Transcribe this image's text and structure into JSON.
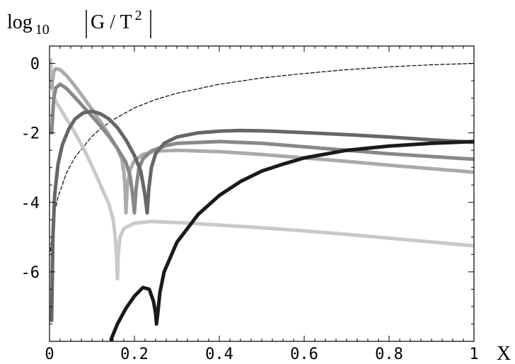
{
  "chart_data": {
    "type": "line",
    "title": "",
    "ylabel": {
      "prefix": "log",
      "subscript": "10",
      "expr_main": "G / T",
      "expr_superscript": "2"
    },
    "xlabel": "X",
    "xlim": [
      0,
      1
    ],
    "ylim": [
      -8,
      0.5
    ],
    "grid": false,
    "legend": "none",
    "x_ticks": [
      {
        "value": 0,
        "label": "0"
      },
      {
        "value": 0.2,
        "label": "0.2"
      },
      {
        "value": 0.4,
        "label": "0.4"
      },
      {
        "value": 0.6,
        "label": "0.6"
      },
      {
        "value": 0.8,
        "label": "0.8"
      },
      {
        "value": 1,
        "label": "1"
      }
    ],
    "y_ticks": [
      {
        "value": 0,
        "label": "0"
      },
      {
        "value": -2,
        "label": "-2"
      },
      {
        "value": -4,
        "label": "-4"
      },
      {
        "value": -6,
        "label": "-6"
      }
    ],
    "series": [
      {
        "color": "#000000",
        "width": 1.2,
        "dash": "5,3",
        "points": [
          [
            0.002,
            -5.4
          ],
          [
            0.01,
            -4.4
          ],
          [
            0.02,
            -3.85
          ],
          [
            0.04,
            -3.15
          ],
          [
            0.06,
            -2.7
          ],
          [
            0.08,
            -2.4
          ],
          [
            0.1,
            -2.1
          ],
          [
            0.12,
            -1.88
          ],
          [
            0.15,
            -1.62
          ],
          [
            0.2,
            -1.28
          ],
          [
            0.25,
            -1.04
          ],
          [
            0.3,
            -0.86
          ],
          [
            0.4,
            -0.6
          ],
          [
            0.5,
            -0.42
          ],
          [
            0.6,
            -0.29
          ],
          [
            0.7,
            -0.18
          ],
          [
            0.8,
            -0.1
          ],
          [
            0.9,
            -0.04
          ],
          [
            1.0,
            0.0
          ]
        ]
      },
      {
        "color": "#c9c9c9",
        "width": 5,
        "points": [
          [
            0.003,
            0.1
          ],
          [
            0.006,
            -0.6
          ],
          [
            0.01,
            -0.9
          ],
          [
            0.015,
            -1.1
          ],
          [
            0.02,
            -1.2
          ],
          [
            0.04,
            -1.6
          ],
          [
            0.06,
            -2.0
          ],
          [
            0.08,
            -2.45
          ],
          [
            0.1,
            -2.95
          ],
          [
            0.12,
            -3.5
          ],
          [
            0.14,
            -4.05
          ],
          [
            0.15,
            -4.5
          ],
          [
            0.155,
            -5.0
          ],
          [
            0.158,
            -5.6
          ],
          [
            0.16,
            -6.2
          ],
          [
            0.162,
            -5.5
          ],
          [
            0.166,
            -5.0
          ],
          [
            0.175,
            -4.75
          ],
          [
            0.2,
            -4.6
          ],
          [
            0.24,
            -4.55
          ],
          [
            0.3,
            -4.58
          ],
          [
            0.4,
            -4.65
          ],
          [
            0.5,
            -4.73
          ],
          [
            0.6,
            -4.82
          ],
          [
            0.7,
            -4.92
          ],
          [
            0.8,
            -5.03
          ],
          [
            0.9,
            -5.14
          ],
          [
            1.0,
            -5.25
          ]
        ]
      },
      {
        "color": "#aaaaaa",
        "width": 5,
        "points": [
          [
            0.005,
            -0.7
          ],
          [
            0.01,
            -0.25
          ],
          [
            0.015,
            -0.15
          ],
          [
            0.025,
            -0.18
          ],
          [
            0.04,
            -0.35
          ],
          [
            0.06,
            -0.65
          ],
          [
            0.08,
            -0.98
          ],
          [
            0.1,
            -1.32
          ],
          [
            0.12,
            -1.68
          ],
          [
            0.14,
            -2.05
          ],
          [
            0.16,
            -2.45
          ],
          [
            0.17,
            -2.75
          ],
          [
            0.175,
            -3.1
          ],
          [
            0.178,
            -3.6
          ],
          [
            0.18,
            -4.3
          ],
          [
            0.183,
            -3.55
          ],
          [
            0.19,
            -3.05
          ],
          [
            0.2,
            -2.8
          ],
          [
            0.22,
            -2.62
          ],
          [
            0.25,
            -2.52
          ],
          [
            0.3,
            -2.5
          ],
          [
            0.4,
            -2.54
          ],
          [
            0.5,
            -2.62
          ],
          [
            0.6,
            -2.72
          ],
          [
            0.7,
            -2.82
          ],
          [
            0.8,
            -2.93
          ],
          [
            0.9,
            -3.03
          ],
          [
            1.0,
            -3.13
          ]
        ]
      },
      {
        "color": "#888888",
        "width": 5,
        "points": [
          [
            0.005,
            -2.0
          ],
          [
            0.01,
            -1.0
          ],
          [
            0.015,
            -0.7
          ],
          [
            0.025,
            -0.6
          ],
          [
            0.04,
            -0.72
          ],
          [
            0.06,
            -0.98
          ],
          [
            0.08,
            -1.25
          ],
          [
            0.1,
            -1.52
          ],
          [
            0.12,
            -1.8
          ],
          [
            0.14,
            -2.1
          ],
          [
            0.16,
            -2.45
          ],
          [
            0.18,
            -2.85
          ],
          [
            0.19,
            -3.25
          ],
          [
            0.196,
            -3.8
          ],
          [
            0.2,
            -4.3
          ],
          [
            0.204,
            -3.6
          ],
          [
            0.21,
            -3.05
          ],
          [
            0.22,
            -2.75
          ],
          [
            0.24,
            -2.52
          ],
          [
            0.27,
            -2.38
          ],
          [
            0.3,
            -2.3
          ],
          [
            0.4,
            -2.25
          ],
          [
            0.5,
            -2.3
          ],
          [
            0.6,
            -2.4
          ],
          [
            0.7,
            -2.5
          ],
          [
            0.8,
            -2.6
          ],
          [
            0.9,
            -2.68
          ],
          [
            1.0,
            -2.76
          ]
        ]
      },
      {
        "color": "#666666",
        "width": 5,
        "points": [
          [
            0.005,
            -7.4
          ],
          [
            0.008,
            -5.0
          ],
          [
            0.012,
            -3.8
          ],
          [
            0.02,
            -2.9
          ],
          [
            0.03,
            -2.35
          ],
          [
            0.045,
            -1.9
          ],
          [
            0.06,
            -1.6
          ],
          [
            0.08,
            -1.42
          ],
          [
            0.1,
            -1.38
          ],
          [
            0.12,
            -1.45
          ],
          [
            0.14,
            -1.6
          ],
          [
            0.16,
            -1.85
          ],
          [
            0.18,
            -2.2
          ],
          [
            0.2,
            -2.65
          ],
          [
            0.215,
            -3.1
          ],
          [
            0.225,
            -3.8
          ],
          [
            0.23,
            -4.3
          ],
          [
            0.234,
            -3.6
          ],
          [
            0.24,
            -3.0
          ],
          [
            0.25,
            -2.6
          ],
          [
            0.27,
            -2.3
          ],
          [
            0.3,
            -2.12
          ],
          [
            0.35,
            -2.0
          ],
          [
            0.4,
            -1.95
          ],
          [
            0.45,
            -1.93
          ],
          [
            0.5,
            -1.94
          ],
          [
            0.6,
            -1.99
          ],
          [
            0.7,
            -2.05
          ],
          [
            0.8,
            -2.12
          ],
          [
            0.9,
            -2.2
          ],
          [
            1.0,
            -2.27
          ]
        ]
      },
      {
        "color": "#1a1a1a",
        "width": 5,
        "points": [
          [
            0.145,
            -7.95
          ],
          [
            0.16,
            -7.5
          ],
          [
            0.18,
            -7.05
          ],
          [
            0.2,
            -6.7
          ],
          [
            0.22,
            -6.45
          ],
          [
            0.235,
            -6.5
          ],
          [
            0.245,
            -6.85
          ],
          [
            0.25,
            -7.2
          ],
          [
            0.252,
            -7.5
          ],
          [
            0.255,
            -7.2
          ],
          [
            0.26,
            -6.6
          ],
          [
            0.27,
            -6.0
          ],
          [
            0.3,
            -5.15
          ],
          [
            0.35,
            -4.35
          ],
          [
            0.4,
            -3.8
          ],
          [
            0.45,
            -3.4
          ],
          [
            0.5,
            -3.1
          ],
          [
            0.55,
            -2.9
          ],
          [
            0.6,
            -2.72
          ],
          [
            0.7,
            -2.5
          ],
          [
            0.8,
            -2.38
          ],
          [
            0.9,
            -2.3
          ],
          [
            1.0,
            -2.25
          ]
        ]
      }
    ]
  }
}
